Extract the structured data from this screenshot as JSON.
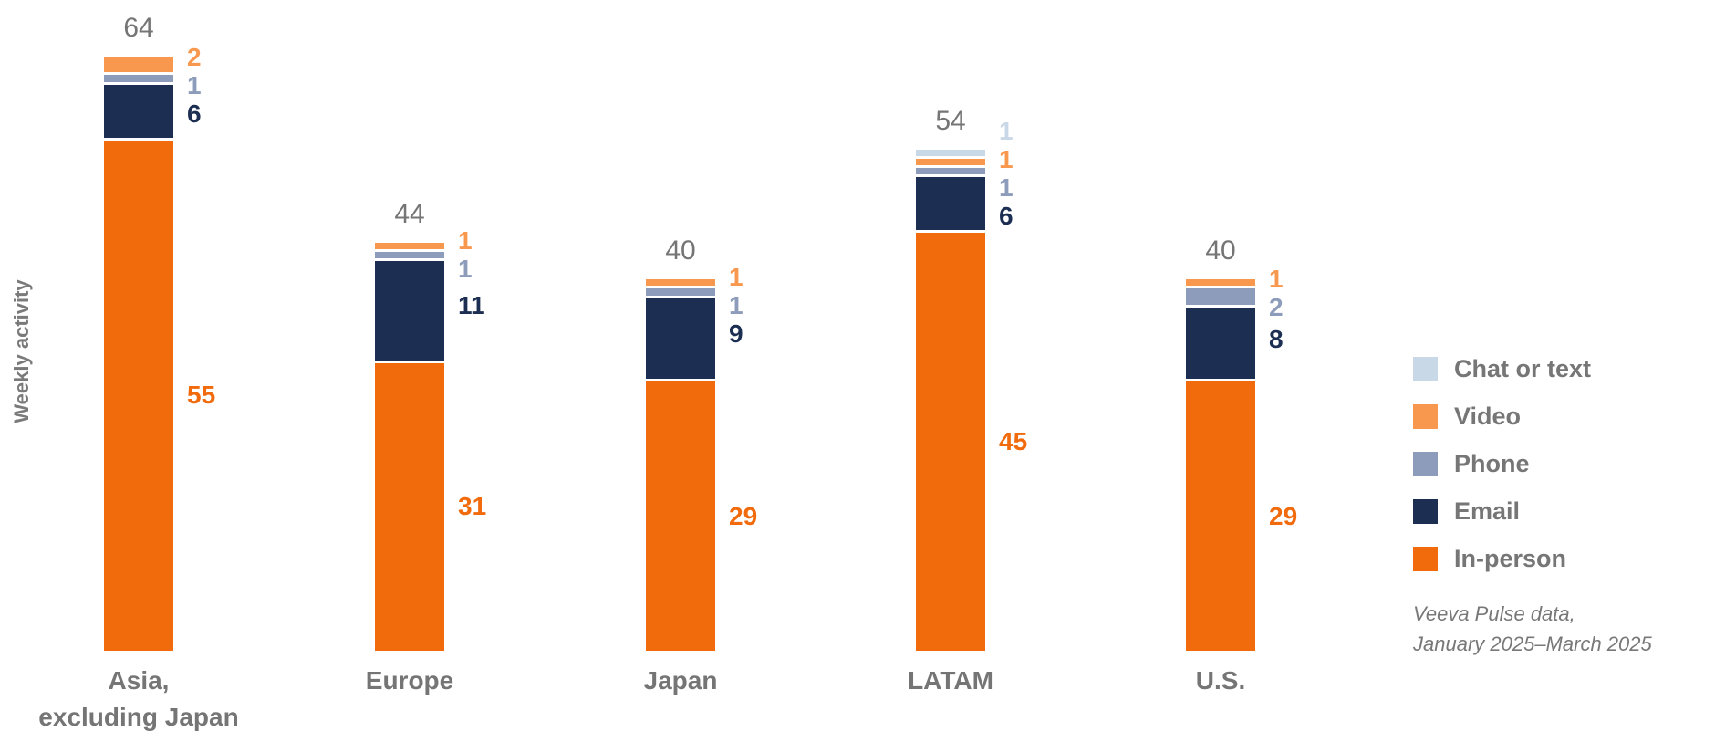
{
  "chart_data": {
    "type": "bar",
    "stacked": true,
    "orientation": "vertical",
    "title": "",
    "xlabel": "",
    "ylabel": "Weekly activity",
    "gridlines": false,
    "y_axis_ticks": "none",
    "legend_position": "right",
    "categories": [
      {
        "lines": [
          "Asia,",
          "excluding Japan"
        ]
      },
      {
        "lines": [
          "Europe"
        ]
      },
      {
        "lines": [
          "Japan"
        ]
      },
      {
        "lines": [
          "LATAM"
        ]
      },
      {
        "lines": [
          "U.S."
        ]
      }
    ],
    "totals": [
      "64",
      "44",
      "40",
      "54",
      "40"
    ],
    "series_top_to_bottom": [
      {
        "name": "Chat or text",
        "color": "#C9D8E6",
        "values": [
          0,
          0,
          0,
          1,
          0
        ]
      },
      {
        "name": "Video",
        "color": "#F8984E",
        "values": [
          2,
          1,
          1,
          1,
          1
        ]
      },
      {
        "name": "Phone",
        "color": "#8C9CBA",
        "values": [
          1,
          1,
          1,
          1,
          2
        ]
      },
      {
        "name": "Email",
        "color": "#1C2F52",
        "values": [
          6,
          11,
          9,
          6,
          8
        ]
      },
      {
        "name": "In-person",
        "color": "#F16A0B",
        "values": [
          55,
          31,
          29,
          45,
          29
        ]
      }
    ]
  },
  "footnote": {
    "line1": "Veeva Pulse data,",
    "line2": "January 2025–March 2025"
  },
  "colors": {
    "total_label_gray": "#757575",
    "category_label_gray": "#757575",
    "legend_text_gray": "#767676",
    "footnote_gray": "#787878",
    "background": "#ffffff"
  }
}
